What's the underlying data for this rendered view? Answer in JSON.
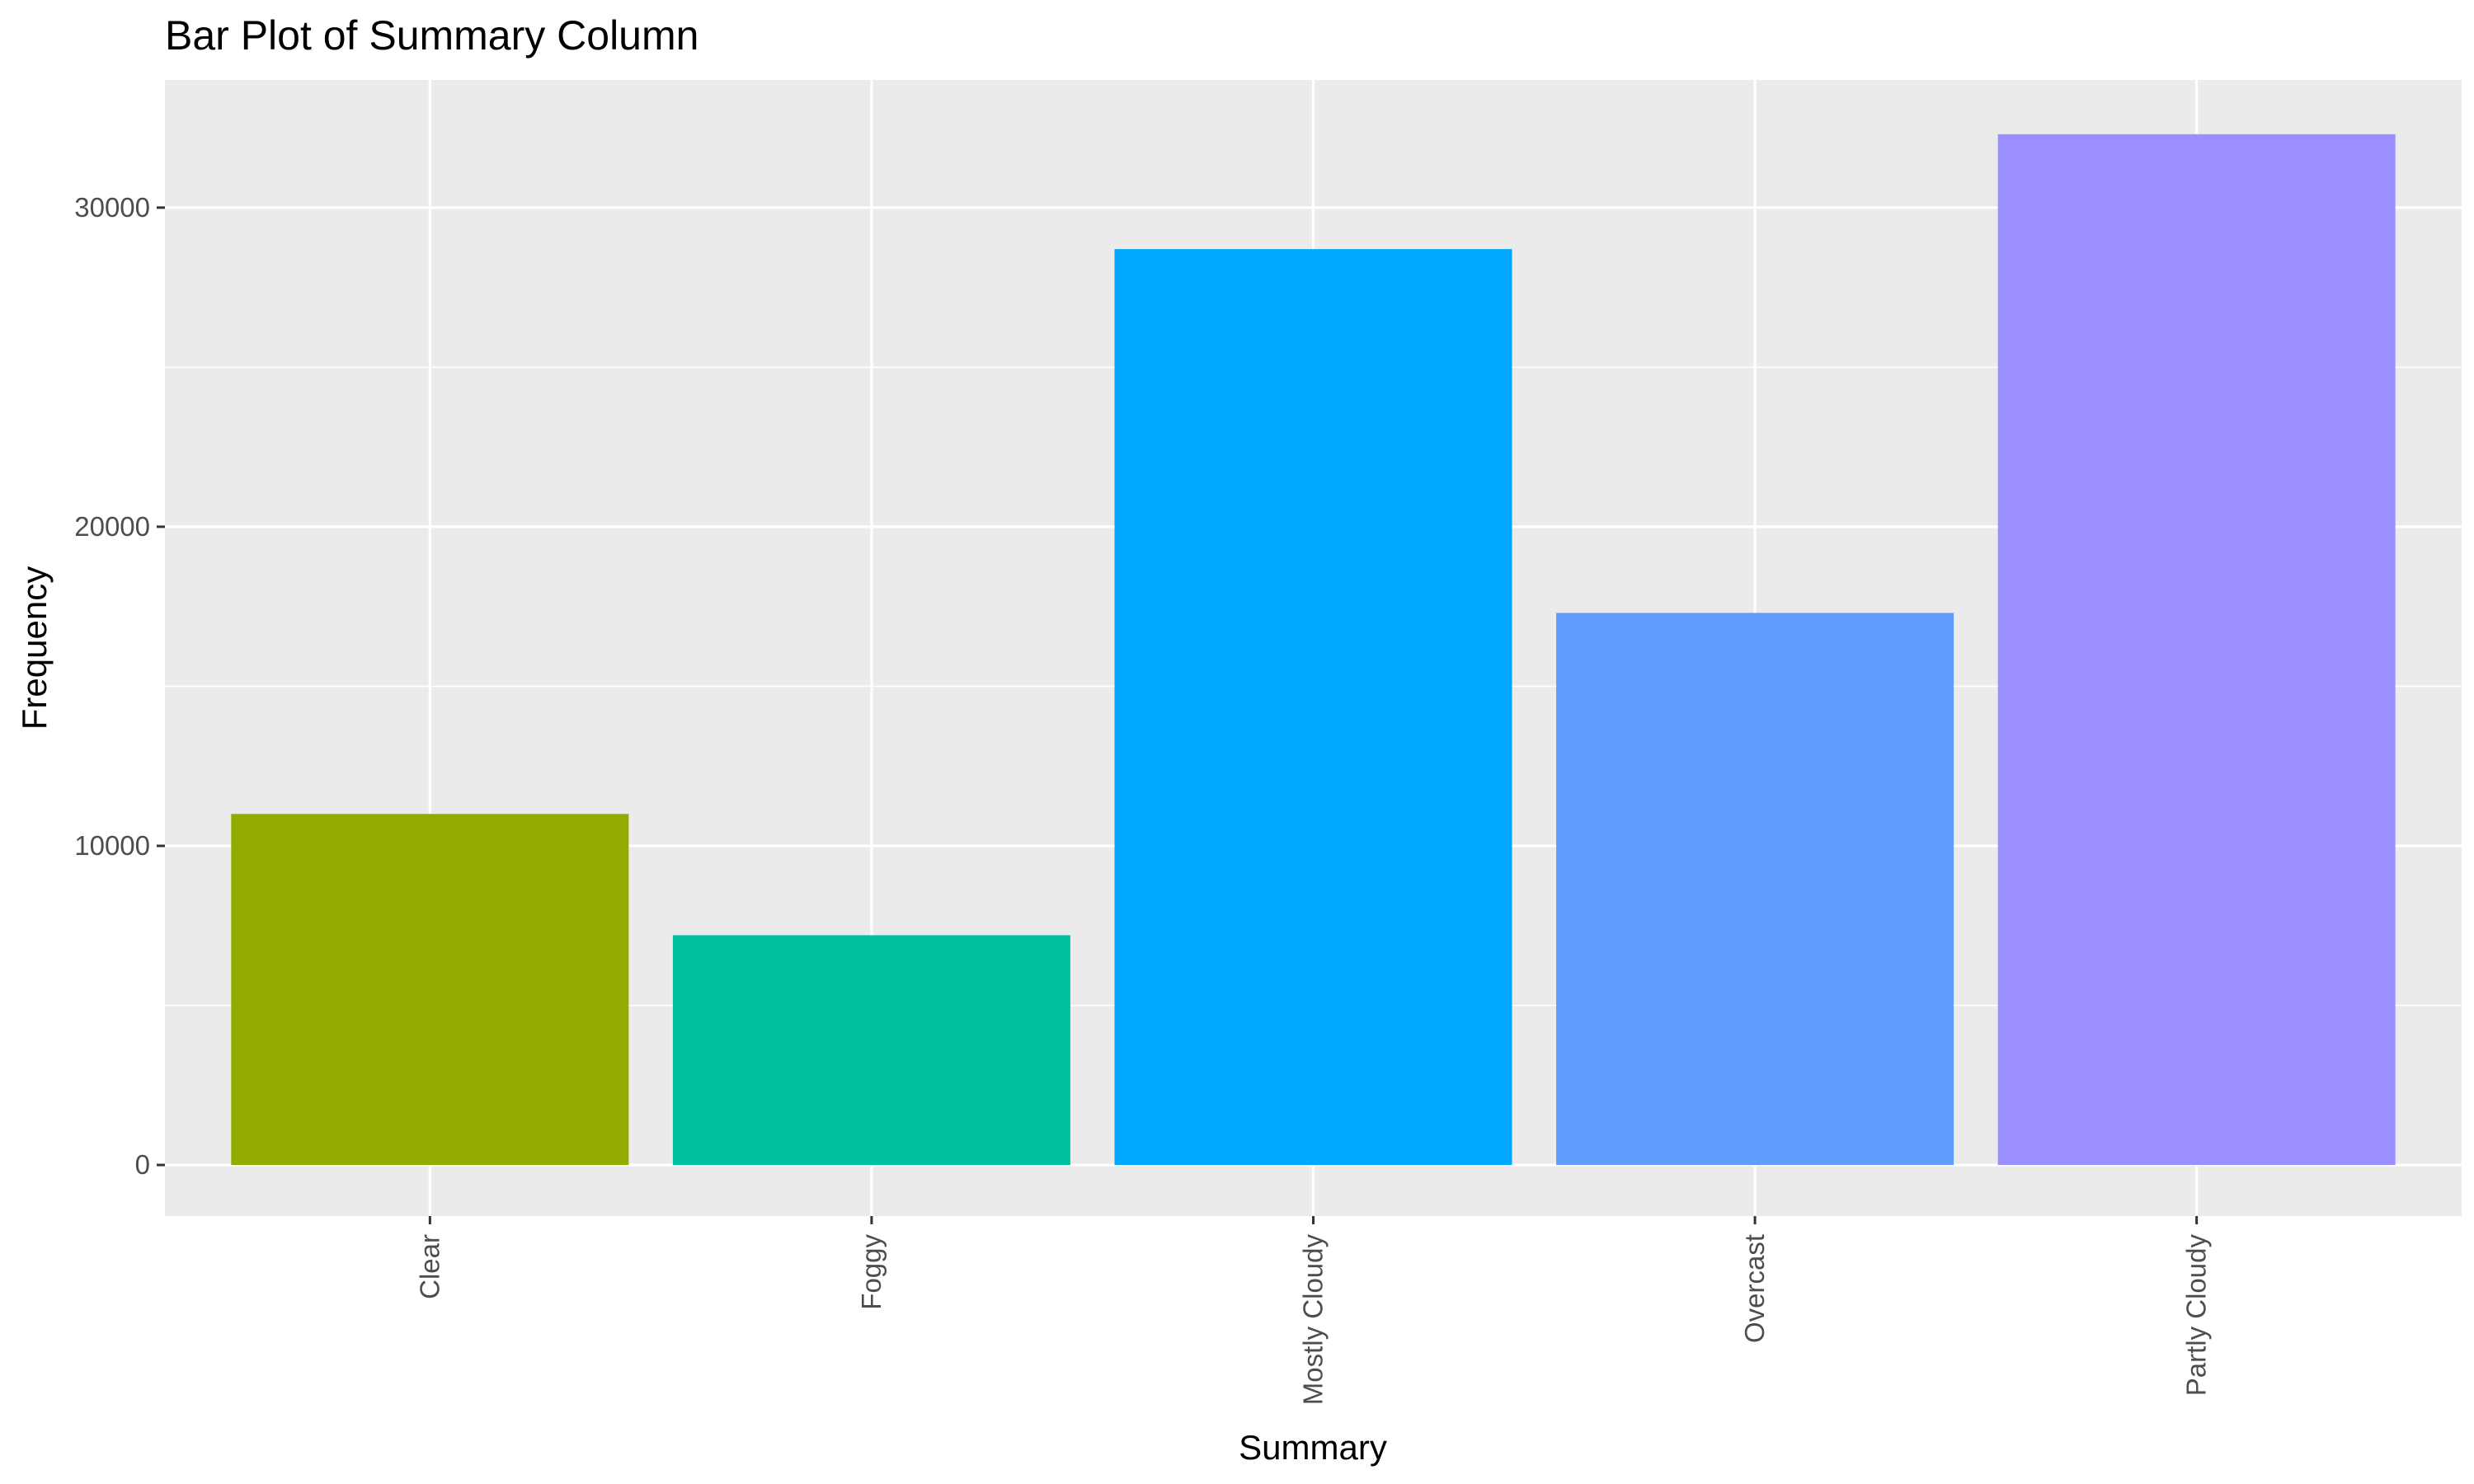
{
  "chart_data": {
    "type": "bar",
    "title": "Bar Plot of Summary Column",
    "xlabel": "Summary",
    "ylabel": "Frequency",
    "categories": [
      "Clear",
      "Foggy",
      "Mostly Cloudy",
      "Overcast",
      "Partly Cloudy"
    ],
    "values": [
      11000,
      7200,
      28700,
      17300,
      32300
    ],
    "bar_colors": [
      "#93AA00",
      "#00C19F",
      "#00A9FF",
      "#619CFF",
      "#9B8FFF"
    ],
    "ylim": [
      -1600,
      34000
    ],
    "yticks": [
      0,
      10000,
      20000,
      30000
    ],
    "ytick_labels": [
      "0",
      "10000",
      "20000",
      "30000"
    ],
    "grid": true,
    "legend": "none",
    "panel_background": "#EBEBEB",
    "grid_color": "#FFFFFF"
  }
}
